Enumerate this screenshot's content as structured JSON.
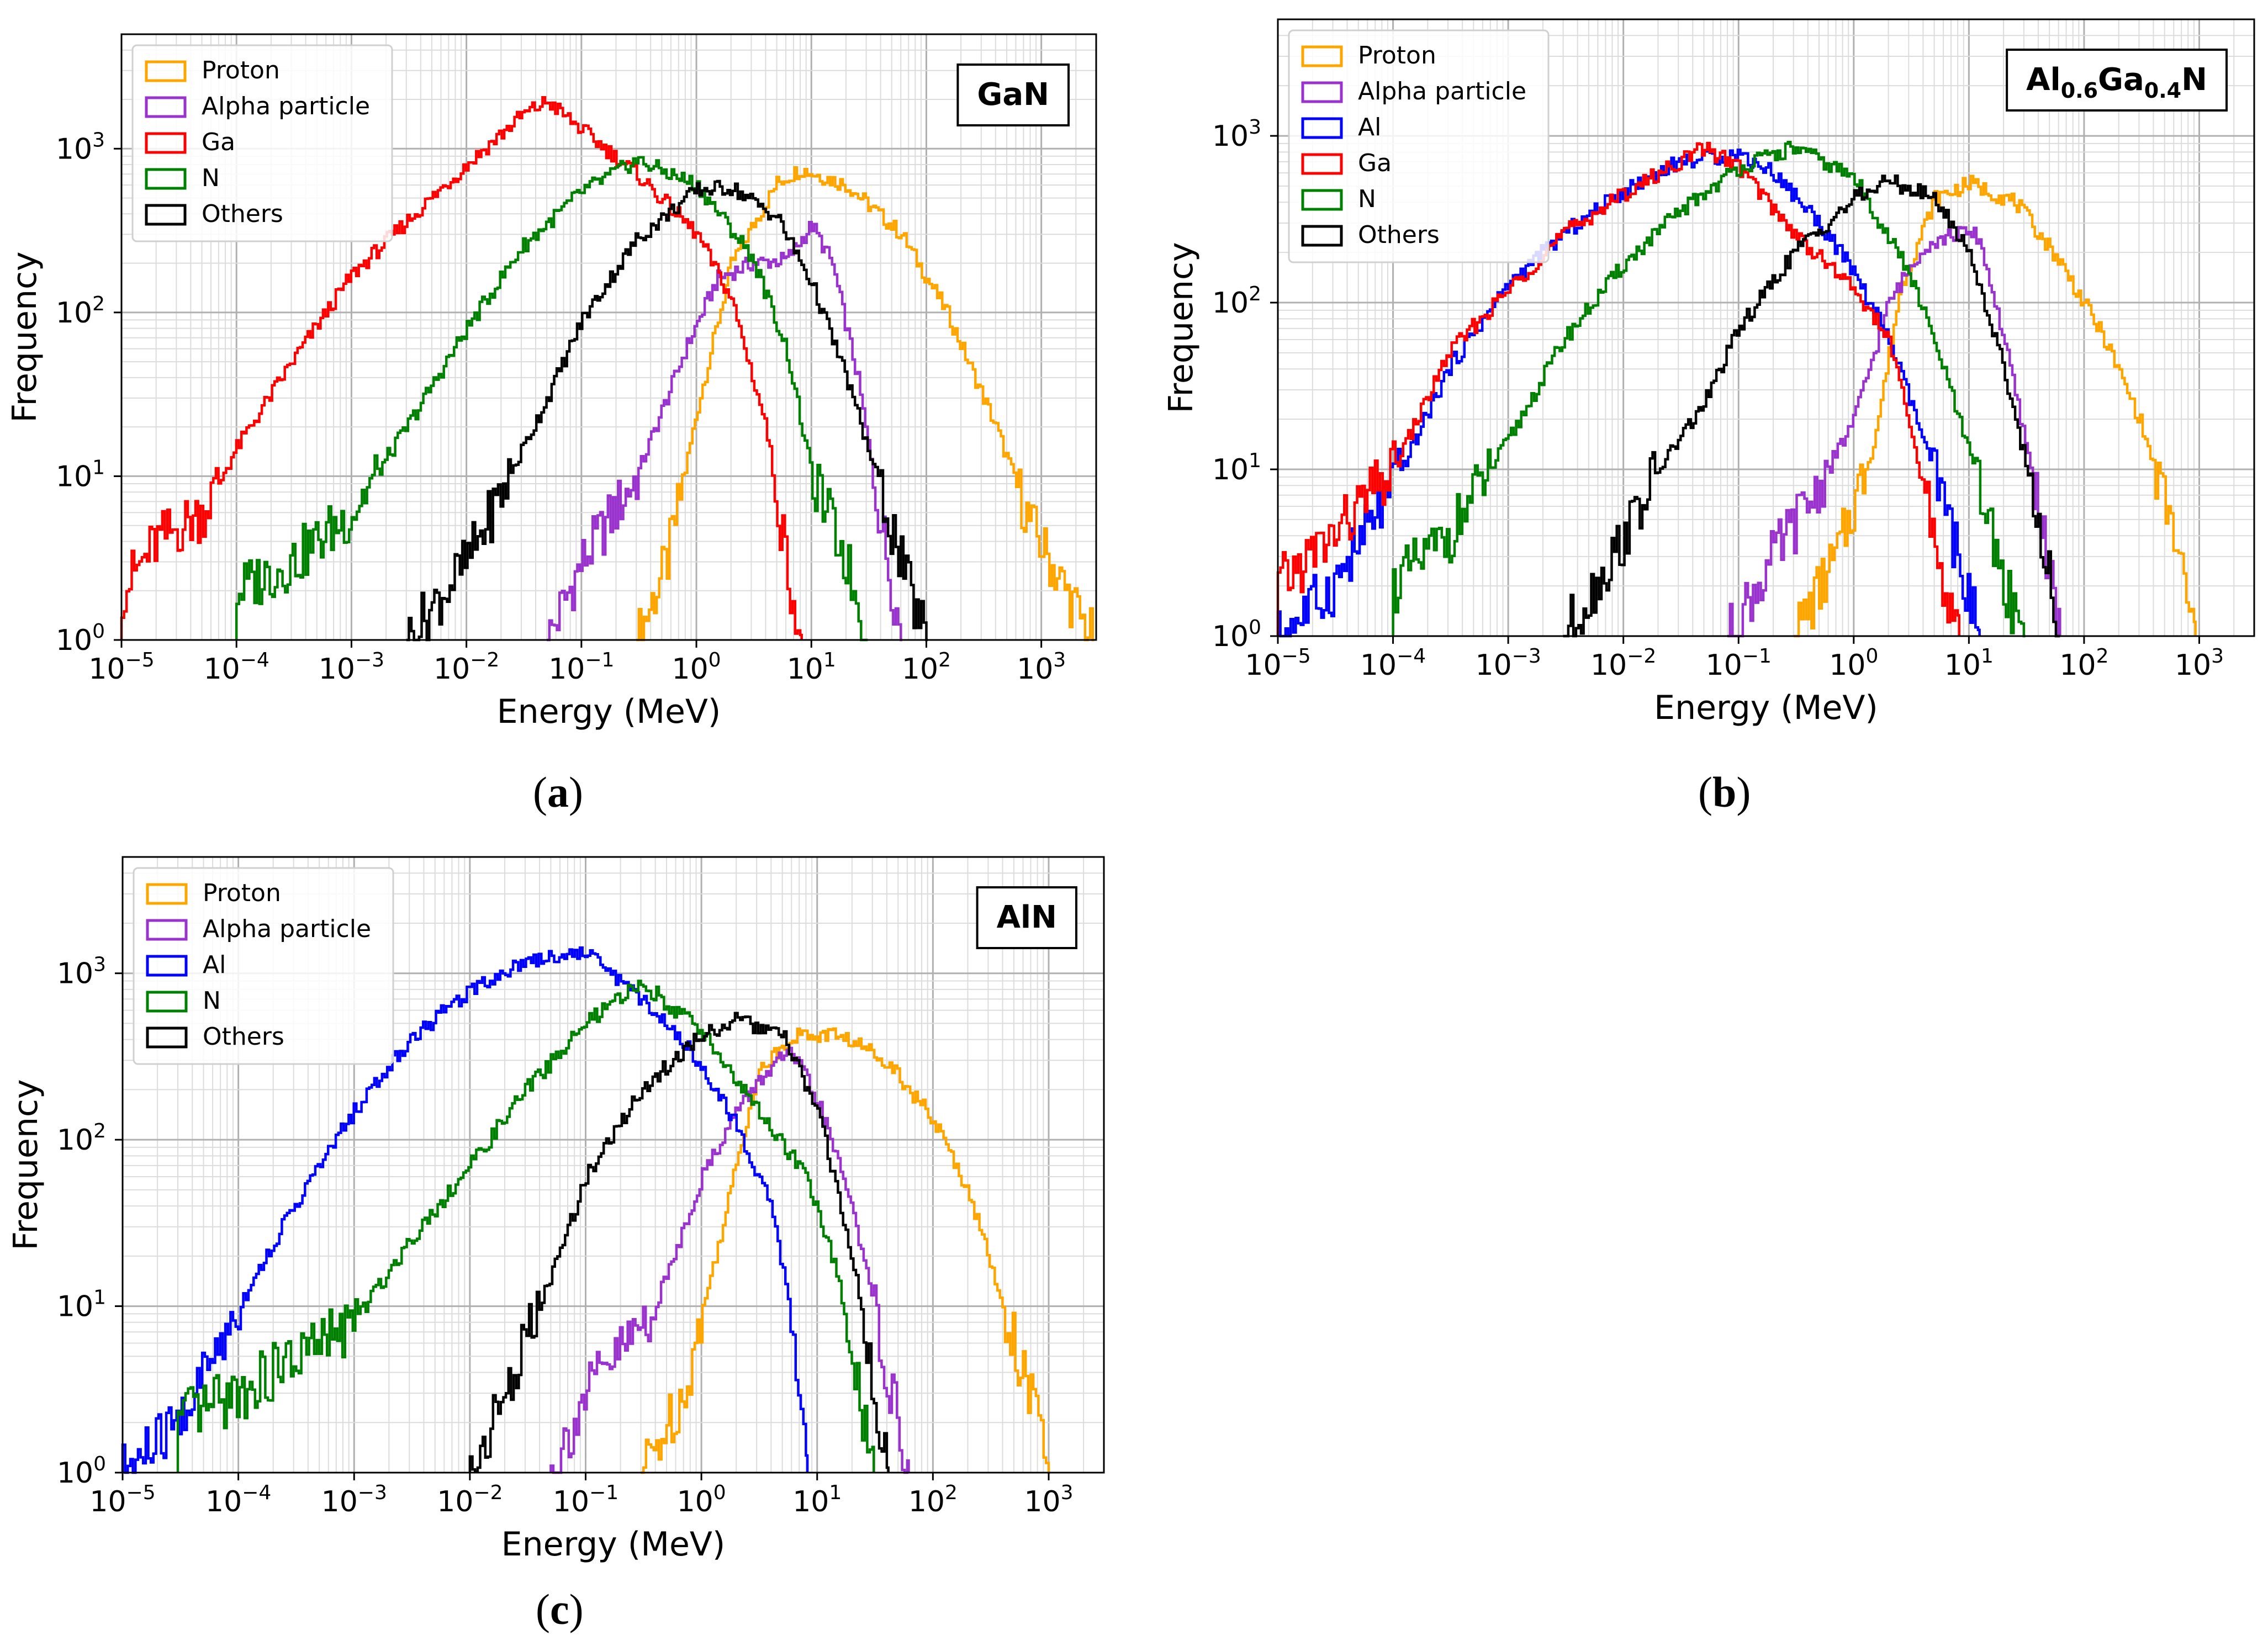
{
  "figure": {
    "captions": [
      "(a)",
      "(b)",
      "(c)"
    ],
    "caption_letters": [
      "a",
      "b",
      "c"
    ]
  },
  "colors": {
    "Proton": "#FFA500",
    "Alpha particle": "#9A32CD",
    "Al": "#0000FF",
    "Ga": "#FF0000",
    "N": "#008000",
    "Others": "#000000"
  },
  "chart_data": [
    {
      "type": "step-histogram",
      "panel": "a",
      "title_box": "GaN",
      "xlabel": "Energy (MeV)",
      "ylabel": "Frequency",
      "xscale": "log",
      "yscale": "log",
      "xlim": [
        1e-05,
        3000
      ],
      "ylim": [
        1,
        5000
      ],
      "x_ticks": [
        1e-05,
        0.0001,
        0.001,
        0.01,
        0.1,
        1,
        10,
        100,
        1000
      ],
      "x_tick_exponents": [
        "-5",
        "-4",
        "-3",
        "-2",
        "-1",
        "0",
        "1",
        "2",
        "3"
      ],
      "y_ticks": [
        1,
        10,
        100,
        1000
      ],
      "y_tick_exponents": [
        "0",
        "1",
        "2",
        "3"
      ],
      "tick_base": "10",
      "grid": true,
      "legend": "top-left",
      "series": [
        {
          "name": "Proton",
          "peaks": [
            [
              0.3,
              1
            ],
            [
              0.55,
              3
            ],
            [
              1.0,
              25
            ],
            [
              2.0,
              200
            ],
            [
              5,
              620
            ],
            [
              8,
              750
            ],
            [
              20,
              600
            ],
            [
              60,
              300
            ],
            [
              150,
              100
            ],
            [
              400,
              20
            ],
            [
              800,
              5
            ],
            [
              2000,
              1.5
            ],
            [
              2800,
              1
            ]
          ]
        },
        {
          "name": "Alpha particle",
          "peaks": [
            [
              0.05,
              1
            ],
            [
              0.1,
              3
            ],
            [
              0.3,
              10
            ],
            [
              0.8,
              60
            ],
            [
              1.5,
              160
            ],
            [
              3,
              200
            ],
            [
              6,
              210
            ],
            [
              10,
              340
            ],
            [
              15,
              200
            ],
            [
              25,
              40
            ],
            [
              40,
              5
            ],
            [
              60,
              1
            ]
          ]
        },
        {
          "name": "Ga",
          "peaks": [
            [
              1e-05,
              2
            ],
            [
              2e-05,
              4
            ],
            [
              5e-05,
              6
            ],
            [
              0.0001,
              15
            ],
            [
              0.0003,
              50
            ],
            [
              0.001,
              170
            ],
            [
              0.003,
              360
            ],
            [
              0.01,
              800
            ],
            [
              0.03,
              1600
            ],
            [
              0.05,
              1950
            ],
            [
              0.1,
              1300
            ],
            [
              0.3,
              700
            ],
            [
              1,
              300
            ],
            [
              2,
              120
            ],
            [
              4,
              20
            ],
            [
              6,
              3
            ],
            [
              8,
              1
            ]
          ]
        },
        {
          "name": "N",
          "peaks": [
            [
              0.0001,
              2
            ],
            [
              0.0003,
              3
            ],
            [
              0.001,
              6
            ],
            [
              0.003,
              20
            ],
            [
              0.01,
              80
            ],
            [
              0.03,
              250
            ],
            [
              0.1,
              550
            ],
            [
              0.3,
              850
            ],
            [
              1,
              600
            ],
            [
              3,
              220
            ],
            [
              6,
              60
            ],
            [
              10,
              10
            ],
            [
              20,
              3
            ],
            [
              30,
              1
            ]
          ]
        },
        {
          "name": "Others",
          "peaks": [
            [
              0.003,
              1
            ],
            [
              0.01,
              3
            ],
            [
              0.02,
              8
            ],
            [
              0.05,
              30
            ],
            [
              0.1,
              90
            ],
            [
              0.3,
              280
            ],
            [
              1,
              560
            ],
            [
              2,
              580
            ],
            [
              5,
              380
            ],
            [
              10,
              150
            ],
            [
              20,
              40
            ],
            [
              40,
              8
            ],
            [
              70,
              2
            ],
            [
              100,
              1
            ]
          ]
        }
      ]
    },
    {
      "type": "step-histogram",
      "panel": "b",
      "title_box_parts": [
        "Al",
        "0.6",
        "Ga",
        "0.4",
        "N"
      ],
      "xlabel": "Energy (MeV)",
      "ylabel": "Frequency",
      "xscale": "log",
      "yscale": "log",
      "xlim": [
        1e-05,
        3000
      ],
      "ylim": [
        1,
        5000
      ],
      "x_ticks": [
        1e-05,
        0.0001,
        0.001,
        0.01,
        0.1,
        1,
        10,
        100,
        1000
      ],
      "x_tick_exponents": [
        "-5",
        "-4",
        "-3",
        "-2",
        "-1",
        "0",
        "1",
        "2",
        "3"
      ],
      "y_ticks": [
        1,
        10,
        100,
        1000
      ],
      "y_tick_exponents": [
        "0",
        "1",
        "2",
        "3"
      ],
      "tick_base": "10",
      "grid": true,
      "legend": "top-left",
      "series": [
        {
          "name": "Proton",
          "peaks": [
            [
              0.3,
              1
            ],
            [
              0.7,
              3
            ],
            [
              1.5,
              15
            ],
            [
              2.5,
              120
            ],
            [
              5,
              420
            ],
            [
              10,
              520
            ],
            [
              25,
              400
            ],
            [
              60,
              180
            ],
            [
              150,
              60
            ],
            [
              300,
              20
            ],
            [
              600,
              4
            ],
            [
              900,
              1
            ]
          ]
        },
        {
          "name": "Alpha particle",
          "peaks": [
            [
              0.08,
              1
            ],
            [
              0.2,
              3
            ],
            [
              0.5,
              8
            ],
            [
              1,
              20
            ],
            [
              2,
              100
            ],
            [
              4,
              220
            ],
            [
              8,
              260
            ],
            [
              12,
              250
            ],
            [
              20,
              60
            ],
            [
              40,
              6
            ],
            [
              60,
              1
            ]
          ]
        },
        {
          "name": "Al",
          "peaks": [
            [
              1e-05,
              1
            ],
            [
              3e-05,
              2
            ],
            [
              0.0001,
              8
            ],
            [
              0.0003,
              40
            ],
            [
              0.001,
              130
            ],
            [
              0.003,
              260
            ],
            [
              0.01,
              470
            ],
            [
              0.03,
              700
            ],
            [
              0.1,
              780
            ],
            [
              0.2,
              600
            ],
            [
              0.5,
              300
            ],
            [
              1,
              150
            ],
            [
              2,
              60
            ],
            [
              4,
              15
            ],
            [
              8,
              3
            ],
            [
              12,
              1
            ]
          ]
        },
        {
          "name": "Ga",
          "peaks": [
            [
              1e-05,
              2
            ],
            [
              3e-05,
              4
            ],
            [
              0.0001,
              10
            ],
            [
              0.0003,
              50
            ],
            [
              0.001,
              120
            ],
            [
              0.003,
              260
            ],
            [
              0.01,
              450
            ],
            [
              0.03,
              700
            ],
            [
              0.05,
              850
            ],
            [
              0.1,
              650
            ],
            [
              0.3,
              260
            ],
            [
              1,
              120
            ],
            [
              2,
              60
            ],
            [
              4,
              8
            ],
            [
              6,
              2
            ],
            [
              8,
              1
            ]
          ]
        },
        {
          "name": "N",
          "peaks": [
            [
              0.0001,
              2
            ],
            [
              0.0003,
              4
            ],
            [
              0.001,
              15
            ],
            [
              0.003,
              60
            ],
            [
              0.01,
              170
            ],
            [
              0.03,
              350
            ],
            [
              0.1,
              650
            ],
            [
              0.3,
              850
            ],
            [
              1,
              560
            ],
            [
              3,
              150
            ],
            [
              6,
              40
            ],
            [
              12,
              8
            ],
            [
              20,
              2
            ],
            [
              30,
              1
            ]
          ]
        },
        {
          "name": "Others",
          "peaks": [
            [
              0.003,
              1
            ],
            [
              0.008,
              3
            ],
            [
              0.02,
              10
            ],
            [
              0.05,
              25
            ],
            [
              0.1,
              70
            ],
            [
              0.3,
              200
            ],
            [
              1,
              420
            ],
            [
              2,
              540
            ],
            [
              5,
              420
            ],
            [
              10,
              200
            ],
            [
              20,
              40
            ],
            [
              40,
              5
            ],
            [
              60,
              1
            ]
          ]
        }
      ]
    },
    {
      "type": "step-histogram",
      "panel": "c",
      "title_box": "AlN",
      "xlabel": "Energy (MeV)",
      "ylabel": "Frequency",
      "xscale": "log",
      "yscale": "log",
      "xlim": [
        1e-05,
        3000
      ],
      "ylim": [
        1,
        5000
      ],
      "x_ticks": [
        1e-05,
        0.0001,
        0.001,
        0.01,
        0.1,
        1,
        10,
        100,
        1000
      ],
      "x_tick_exponents": [
        "-5",
        "-4",
        "-3",
        "-2",
        "-1",
        "0",
        "1",
        "2",
        "3"
      ],
      "y_ticks": [
        1,
        10,
        100,
        1000
      ],
      "y_tick_exponents": [
        "0",
        "1",
        "2",
        "3"
      ],
      "tick_base": "10",
      "grid": true,
      "legend": "top-left",
      "series": [
        {
          "name": "Proton",
          "peaks": [
            [
              0.3,
              1
            ],
            [
              0.7,
              3
            ],
            [
              1.5,
              30
            ],
            [
              3,
              250
            ],
            [
              6,
              420
            ],
            [
              15,
              430
            ],
            [
              40,
              300
            ],
            [
              100,
              130
            ],
            [
              200,
              50
            ],
            [
              400,
              10
            ],
            [
              800,
              2
            ],
            [
              1000,
              1
            ]
          ]
        },
        {
          "name": "Alpha particle",
          "peaks": [
            [
              0.05,
              1
            ],
            [
              0.1,
              3
            ],
            [
              0.4,
              10
            ],
            [
              1,
              60
            ],
            [
              2,
              150
            ],
            [
              4,
              280
            ],
            [
              6,
              330
            ],
            [
              10,
              170
            ],
            [
              20,
              40
            ],
            [
              35,
              6
            ],
            [
              60,
              1
            ]
          ]
        },
        {
          "name": "Al",
          "peaks": [
            [
              1e-05,
              1
            ],
            [
              3e-05,
              2
            ],
            [
              0.0001,
              10
            ],
            [
              0.0003,
              40
            ],
            [
              0.001,
              150
            ],
            [
              0.003,
              400
            ],
            [
              0.01,
              800
            ],
            [
              0.03,
              1200
            ],
            [
              0.1,
              1350
            ],
            [
              0.2,
              900
            ],
            [
              0.5,
              500
            ],
            [
              1,
              280
            ],
            [
              2,
              120
            ],
            [
              4,
              40
            ],
            [
              6,
              8
            ],
            [
              8,
              1
            ]
          ]
        },
        {
          "name": "N",
          "peaks": [
            [
              3e-05,
              2
            ],
            [
              0.0001,
              3
            ],
            [
              0.001,
              8
            ],
            [
              0.003,
              25
            ],
            [
              0.01,
              70
            ],
            [
              0.03,
              200
            ],
            [
              0.1,
              500
            ],
            [
              0.3,
              880
            ],
            [
              1,
              450
            ],
            [
              3,
              150
            ],
            [
              8,
              60
            ],
            [
              15,
              15
            ],
            [
              25,
              2
            ],
            [
              30,
              1
            ]
          ]
        },
        {
          "name": "Others",
          "peaks": [
            [
              0.01,
              1
            ],
            [
              0.02,
              3
            ],
            [
              0.05,
              15
            ],
            [
              0.1,
              60
            ],
            [
              0.3,
              200
            ],
            [
              1,
              430
            ],
            [
              2,
              520
            ],
            [
              5,
              420
            ],
            [
              10,
              150
            ],
            [
              20,
              20
            ],
            [
              30,
              3
            ],
            [
              40,
              1
            ]
          ]
        }
      ]
    }
  ]
}
